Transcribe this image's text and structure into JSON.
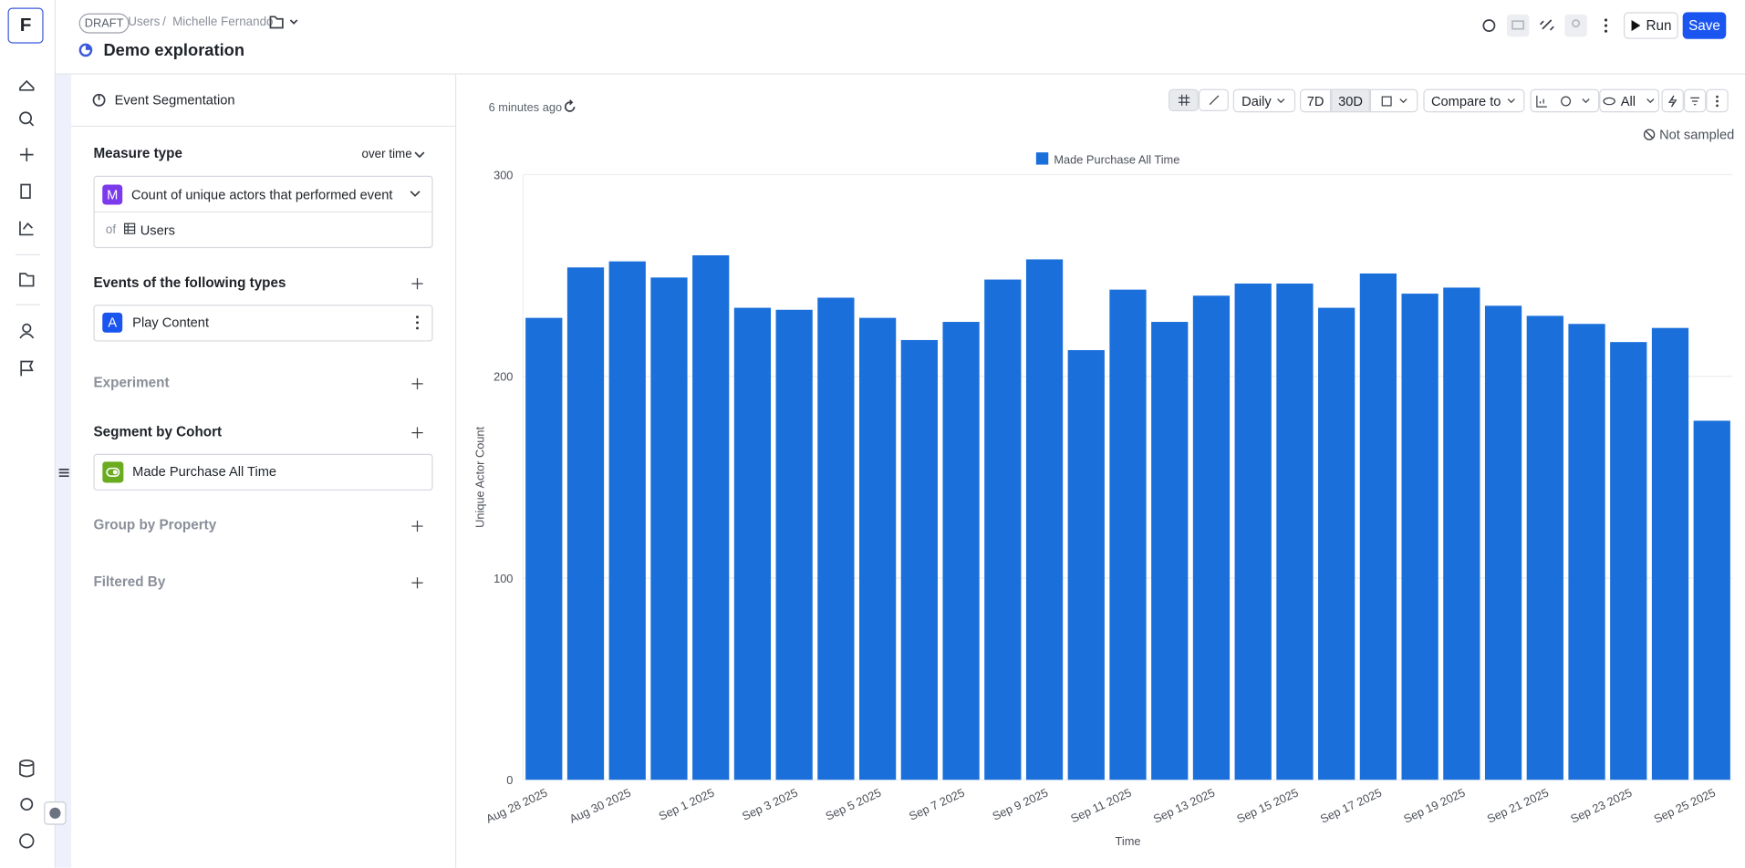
{
  "logo": "F",
  "header": {
    "status": "DRAFT",
    "breadcrumb": [
      "Users",
      "Michelle Fernando"
    ],
    "separator": "/",
    "title": "Demo exploration",
    "actions": [
      "Run",
      "Save"
    ]
  },
  "panel": {
    "title": "Event Segmentation",
    "measure_label": "Measure type",
    "measure_mode": "over time",
    "measure_badge": "M",
    "measure": "Count of unique actors that performed event",
    "of_label": "of",
    "of_value": "Users",
    "events_label": "Events of the following types",
    "event_badge": "A",
    "event": "Play Content",
    "experiment_label": "Experiment",
    "segment_label": "Segment by Cohort",
    "cohort": "Made Purchase All Time",
    "group_label": "Group by Property",
    "filter_label": "Filtered By"
  },
  "toolbar": {
    "updated": "6 minutes ago",
    "interval": "Daily",
    "ranges": [
      "7D",
      "30D"
    ],
    "compare": "Compare to",
    "view": "All",
    "sampling": "Not sampled"
  },
  "chart_data": {
    "type": "bar",
    "x_title": "Time",
    "y_title": "Unique Actor Count",
    "categories": [
      "Aug 28 2025",
      null,
      "Aug 30 2025",
      null,
      "Sep 1 2025",
      null,
      "Sep 3 2025",
      null,
      "Sep 5 2025",
      null,
      "Sep 7 2025",
      null,
      "Sep 9 2025",
      null,
      "Sep 11 2025",
      null,
      "Sep 13 2025",
      null,
      "Sep 15 2025",
      null,
      "Sep 17 2025",
      null,
      "Sep 19 2025",
      null,
      "Sep 21 2025",
      null,
      "Sep 23 2025",
      null,
      "Sep 25 2025"
    ],
    "series": [
      {
        "name": "Made Purchase All Time",
        "color": "#1a6fdb",
        "values": [
          229,
          254,
          257,
          249,
          260,
          234,
          233,
          239,
          229,
          218,
          227,
          248,
          258,
          213,
          243,
          227,
          240,
          246,
          246,
          234,
          251,
          241,
          244,
          235,
          230,
          226,
          217,
          224,
          178
        ]
      }
    ],
    "ylim": [
      0,
      300
    ],
    "yticks": [
      0,
      100,
      200,
      300
    ],
    "grid": true
  }
}
